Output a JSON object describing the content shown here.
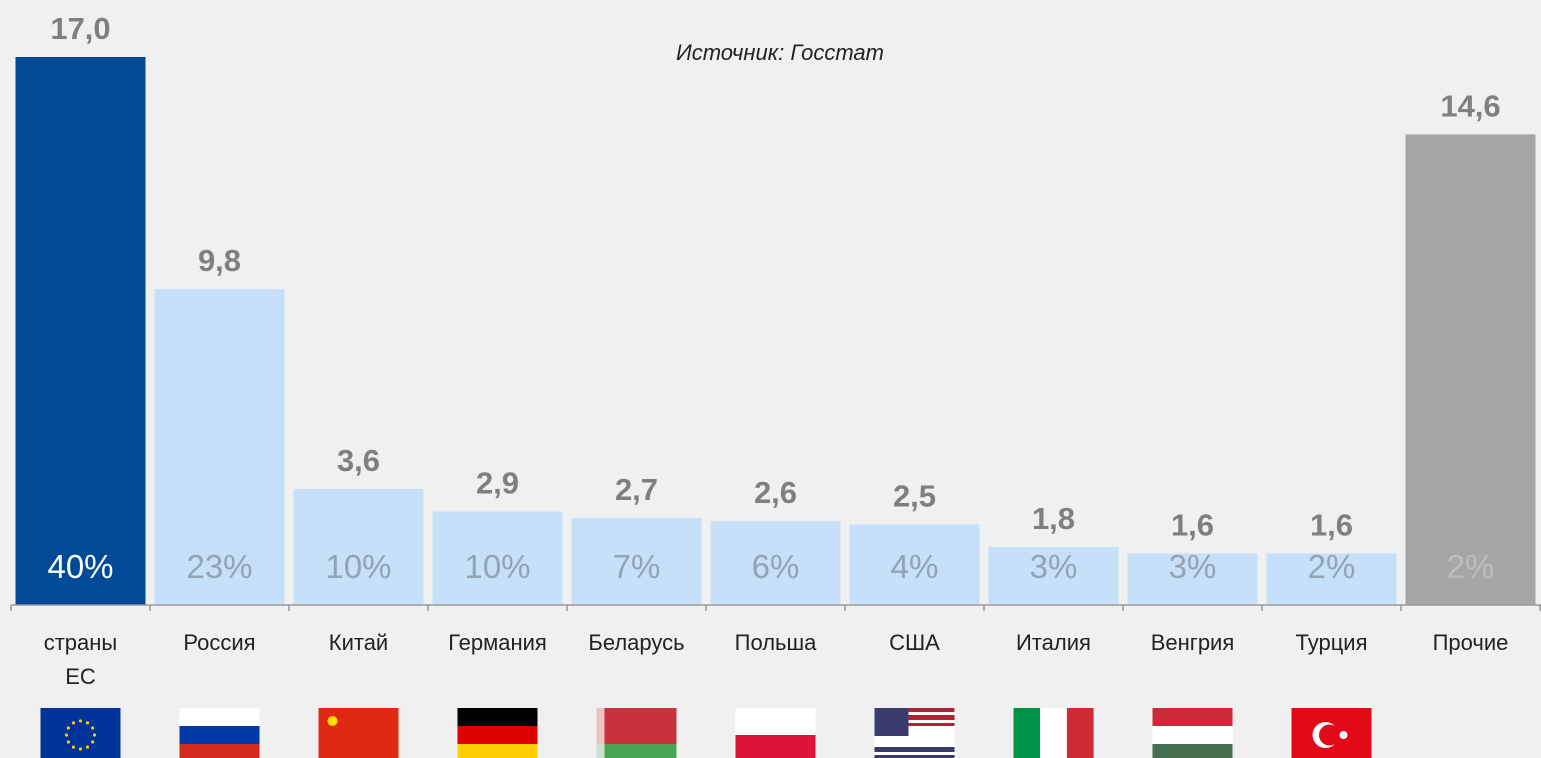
{
  "chart_data": {
    "type": "bar",
    "source": "Источник: Госстат",
    "categories": [
      "страны\nЕС",
      "Россия",
      "Китай",
      "Германия",
      "Беларусь",
      "Польша",
      "США",
      "Италия",
      "Венгрия",
      "Турция",
      "Прочие"
    ],
    "values": [
      17.0,
      9.8,
      3.6,
      2.9,
      2.7,
      2.6,
      2.5,
      1.8,
      1.6,
      1.6,
      14.6
    ],
    "value_labels": [
      "17,0",
      "9,8",
      "3,6",
      "2,9",
      "2,7",
      "2,6",
      "2,5",
      "1,8",
      "1,6",
      "1,6",
      "14,6"
    ],
    "share_labels": [
      "40%",
      "23%",
      "10%",
      "10%",
      "7%",
      "6%",
      "4%",
      "3%",
      "3%",
      "2%",
      "2%"
    ],
    "colors": [
      "#004a97",
      "#c6e0fa",
      "#c6e0fa",
      "#c6e0fa",
      "#c6e0fa",
      "#c6e0fa",
      "#c6e0fa",
      "#c6e0fa",
      "#c6e0fa",
      "#c6e0fa",
      "#a6a6a6"
    ],
    "share_label_colors": [
      "#ffffff",
      "#93a3b3",
      "#93a3b3",
      "#93a3b3",
      "#93a3b3",
      "#93a3b3",
      "#93a3b3",
      "#93a3b3",
      "#93a3b3",
      "#93a3b3",
      "#bdbdbd"
    ],
    "ylim": [
      0,
      17
    ]
  }
}
